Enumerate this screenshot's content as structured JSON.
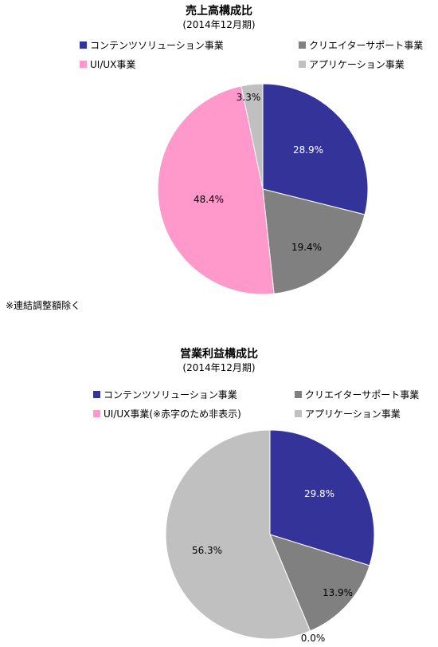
{
  "chart_data": [
    {
      "type": "pie",
      "title": "売上高構成比",
      "subtitle": "(2014年12月期)",
      "series": [
        {
          "name": "コンテンツソリューション事業",
          "value": 28.9,
          "label": "28.9%",
          "color": "#333399"
        },
        {
          "name": "クリエイターサポート事業",
          "value": 19.4,
          "label": "19.4%",
          "color": "#808080"
        },
        {
          "name": "UI/UX事業",
          "value": 48.4,
          "label": "48.4%",
          "color": "#FF99CC"
        },
        {
          "name": "アプリケーション事業",
          "value": 3.3,
          "label": "3.3%",
          "color": "#C0C0C0"
        }
      ],
      "note": "※連結調整額除く"
    },
    {
      "type": "pie",
      "title": "営業利益構成比",
      "subtitle": "(2014年12月期)",
      "series": [
        {
          "name": "コンテンツソリューション事業",
          "value": 29.8,
          "label": "29.8%",
          "color": "#333399"
        },
        {
          "name": "クリエイターサポート事業",
          "value": 13.9,
          "label": "13.9%",
          "color": "#808080"
        },
        {
          "name": "UI/UX事業(※赤字のため非表示)",
          "value": 0.0,
          "label": "0.0%",
          "color": "#FF99CC"
        },
        {
          "name": "アプリケーション事業",
          "value": 56.3,
          "label": "56.3%",
          "color": "#C0C0C0"
        }
      ]
    }
  ]
}
